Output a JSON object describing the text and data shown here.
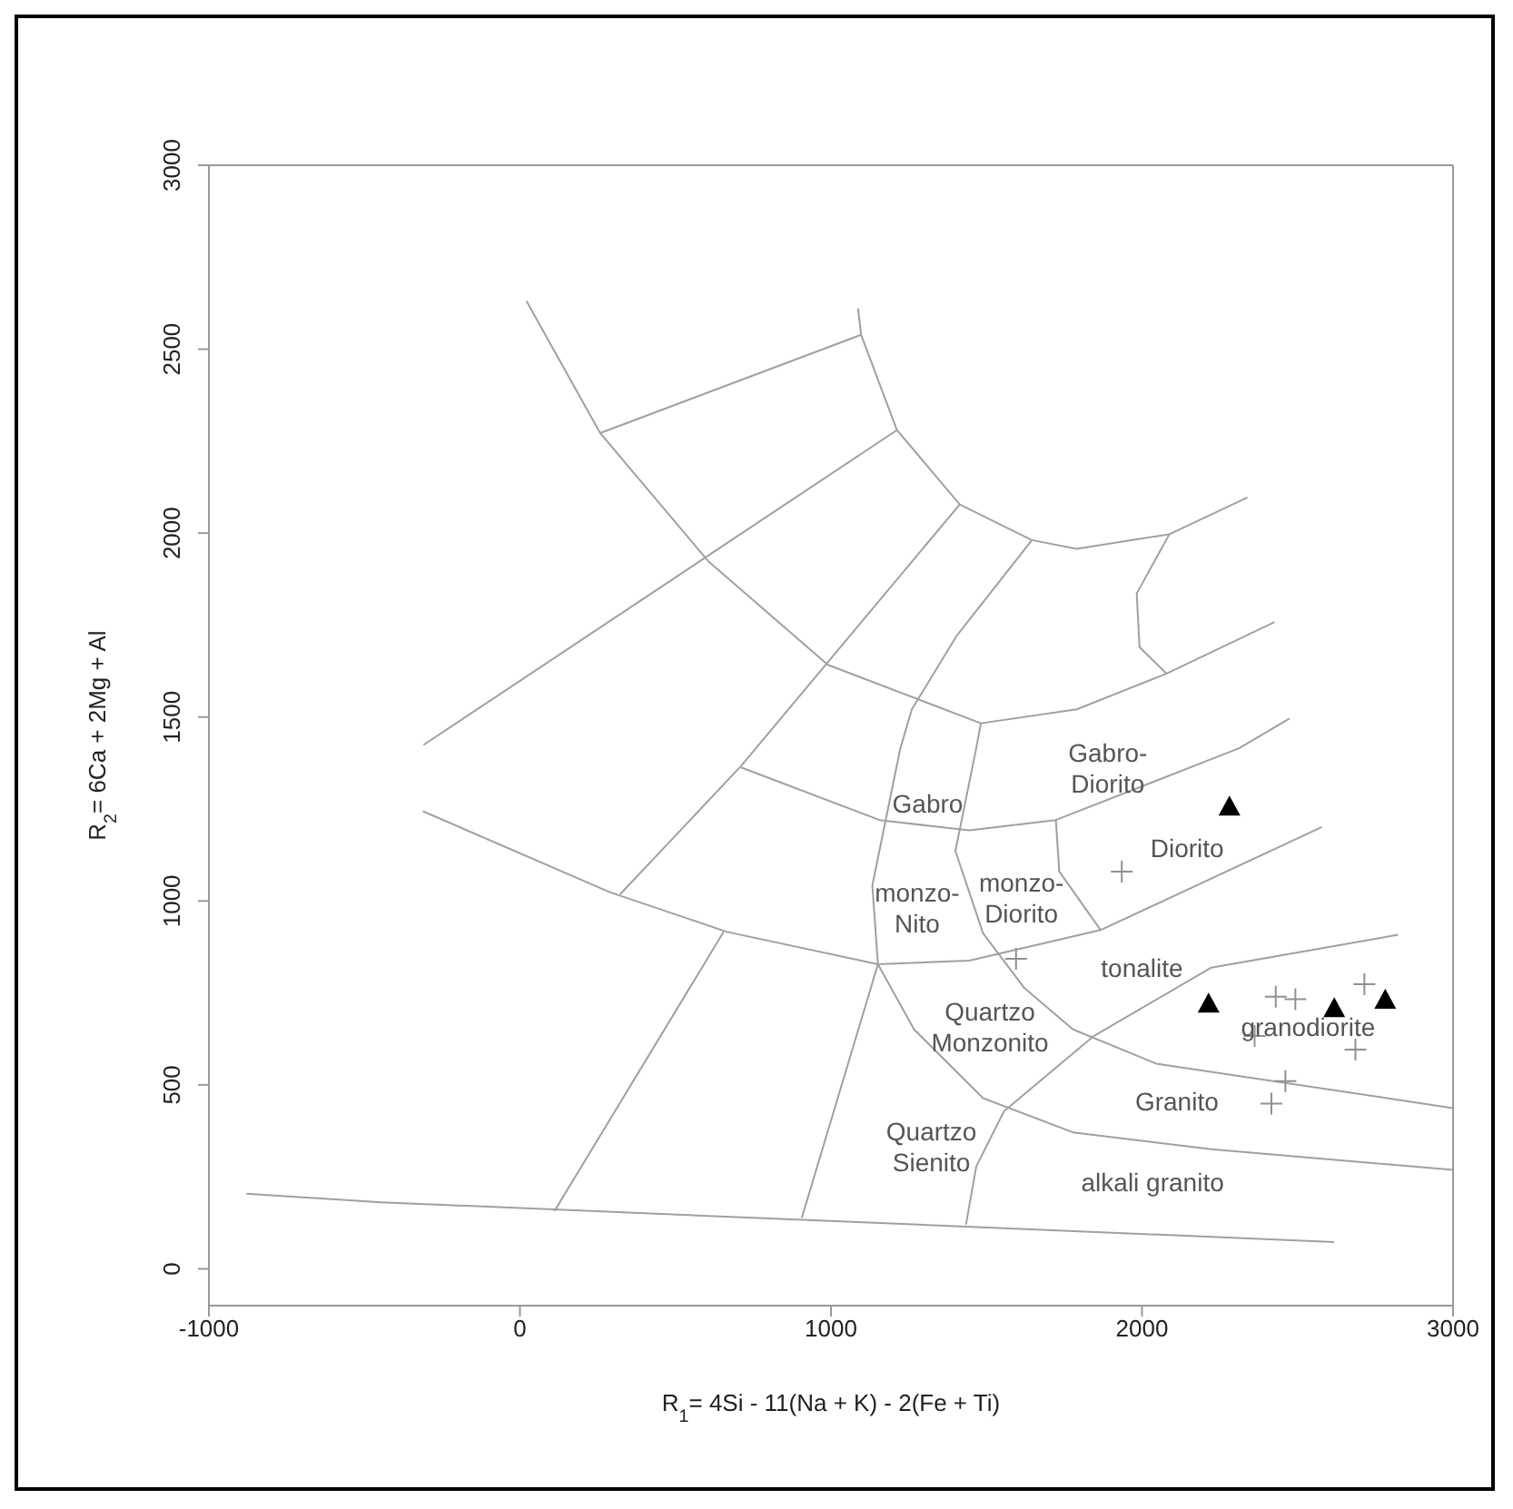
{
  "chart_data": {
    "type": "scatter",
    "xlabel": "R$_{1}$= 4Si - 11(Na + K) - 2(Fe + Ti)",
    "ylabel": "R$_{2}$= 6Ca + 2Mg + Al",
    "xlim": [
      -1000,
      3000
    ],
    "ylim": [
      -100,
      3000
    ],
    "xticks": [
      -1000,
      0,
      1000,
      2000,
      3000
    ],
    "yticks": [
      0,
      500,
      1000,
      1500,
      2000,
      2500,
      3000
    ],
    "grid": false,
    "series": [
      {
        "type": "line",
        "color": "#a0a0a0",
        "marker": "none",
        "line_style": "solid",
        "x": [
          21,
          258,
          605,
          990,
          1482,
          1790,
          2079,
          2426
        ],
        "values": [
          2631,
          2272,
          1924,
          1642,
          1483,
          1521,
          1618,
          1758
        ]
      },
      {
        "type": "line",
        "color": "#a0a0a0",
        "marker": "none",
        "line_style": "solid",
        "x": [
          1087,
          1097,
          1212,
          1414,
          1646,
          1790,
          2088,
          2339
        ],
        "values": [
          2611,
          2539,
          2280,
          2078,
          1981,
          1957,
          1997,
          2097
        ]
      },
      {
        "type": "line",
        "color": "#a0a0a0",
        "marker": "none",
        "line_style": "solid",
        "x": [
          258,
          1097
        ],
        "values": [
          2272,
          2539
        ]
      },
      {
        "type": "line",
        "color": "#a0a0a0",
        "marker": "none",
        "line_style": "solid",
        "x": [
          -310,
          1212
        ],
        "values": [
          1424,
          2280
        ]
      },
      {
        "type": "line",
        "color": "#a0a0a0",
        "marker": "none",
        "line_style": "solid",
        "x": [
          1414,
          711,
          322
        ],
        "values": [
          2078,
          1367,
          1018
        ]
      },
      {
        "type": "line",
        "color": "#a0a0a0",
        "marker": "none",
        "line_style": "solid",
        "x": [
          1646,
          1405,
          1260,
          1223,
          1133,
          1151,
          1267,
          1489,
          1778,
          2223,
          3000
        ],
        "values": [
          1981,
          1722,
          1521,
          1415,
          1042,
          828,
          651,
          464,
          371,
          325,
          269
        ]
      },
      {
        "type": "line",
        "color": "#a0a0a0",
        "marker": "none",
        "line_style": "solid",
        "x": [
          711,
          1156,
          1445,
          1723,
          2312,
          2474
        ],
        "values": [
          1363,
          1220,
          1192,
          1220,
          1415,
          1496
        ]
      },
      {
        "type": "line",
        "color": "#a0a0a0",
        "marker": "none",
        "line_style": "solid",
        "x": [
          -312,
          289,
          666,
          1151,
          1445,
          1867,
          2578
        ],
        "values": [
          1244,
          1024,
          916,
          828,
          838,
          921,
          1201
        ]
      },
      {
        "type": "line",
        "color": "#a0a0a0",
        "marker": "none",
        "line_style": "solid",
        "x": [
          1482,
          1467,
          1400,
          1489,
          1622,
          1778,
          2045,
          3000
        ],
        "values": [
          1483,
          1415,
          1136,
          912,
          763,
          651,
          558,
          437
        ]
      },
      {
        "type": "line",
        "color": "#a0a0a0",
        "marker": "none",
        "line_style": "solid",
        "x": [
          1723,
          1734,
          1867
        ],
        "values": [
          1220,
          1080,
          921
        ]
      },
      {
        "type": "line",
        "color": "#a0a0a0",
        "marker": "none",
        "line_style": "solid",
        "x": [
          2823,
          2223,
          1845,
          1556,
          1467,
          1434
        ],
        "values": [
          908,
          819,
          633,
          428,
          278,
          120
        ]
      },
      {
        "type": "line",
        "color": "#a0a0a0",
        "marker": "none",
        "line_style": "solid",
        "x": [
          1151,
          906
        ],
        "values": [
          828,
          138
        ]
      },
      {
        "type": "line",
        "color": "#a0a0a0",
        "marker": "none",
        "line_style": "solid",
        "x": [
          655,
          111
        ],
        "values": [
          916,
          157
        ]
      },
      {
        "type": "line",
        "color": "#a0a0a0",
        "marker": "none",
        "line_style": "solid",
        "x": [
          -879,
          -445,
          2618
        ],
        "values": [
          204,
          181,
          73
        ]
      },
      {
        "type": "line",
        "color": "#a0a0a0",
        "marker": "none",
        "line_style": "solid",
        "x": [
          2088,
          1983,
          1992,
          2079
        ],
        "values": [
          1997,
          1836,
          1690,
          1618
        ]
      },
      {
        "color": "#000000",
        "marker": "triangle",
        "x": [
          2281,
          2214,
          2618,
          2782
        ],
        "values": [
          1257,
          721,
          709,
          732
        ]
      },
      {
        "color": "#909090",
        "marker": "cross",
        "x": [
          1935,
          2430,
          2493,
          2715,
          2686,
          2461,
          2416,
          1595,
          2362
        ],
        "values": [
          1080,
          740,
          733,
          774,
          596,
          510,
          449,
          843,
          633
        ]
      }
    ],
    "annotations": [
      "Gabro-\nDiorito",
      "Gabro",
      "Diorito",
      "monzo-\nNito",
      "monzo-\nDiorito",
      "tonalite",
      "Quartzo\nMonzonito",
      "granodiorite",
      "Granito",
      "Quartzo\nSienito",
      "alkali granito"
    ]
  }
}
